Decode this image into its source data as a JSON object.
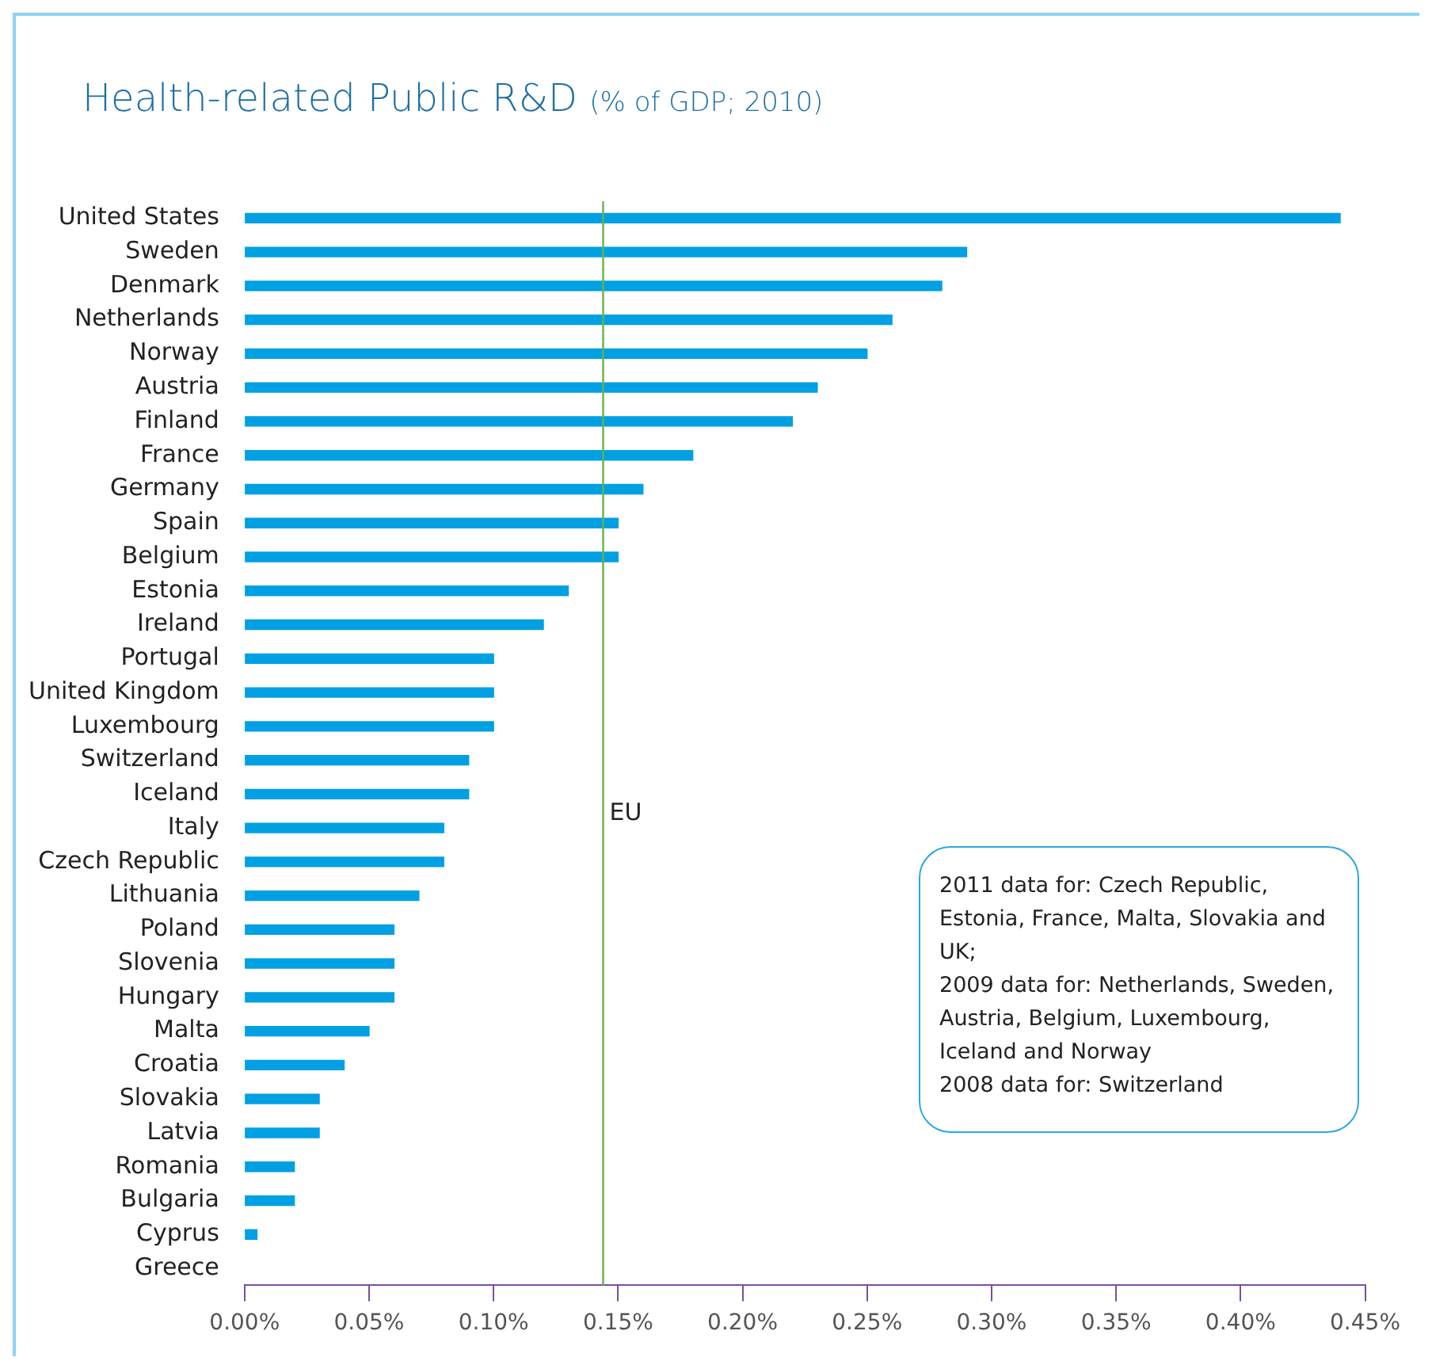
{
  "chart_data": {
    "type": "bar",
    "orientation": "horizontal",
    "title": "Health-related Public R&D",
    "subtitle": "(% of GDP; 2010)",
    "categories": [
      "United States",
      "Sweden",
      "Denmark",
      "Netherlands",
      "Norway",
      "Austria",
      "Finland",
      "France",
      "Germany",
      "Spain",
      "Belgium",
      "Estonia",
      "Ireland",
      "Portugal",
      "United Kingdom",
      "Luxembourg",
      "Switzerland",
      "Iceland",
      "Italy",
      "Czech Republic",
      "Lithuania",
      "Poland",
      "Slovenia",
      "Hungary",
      "Malta",
      "Croatia",
      "Slovakia",
      "Latvia",
      "Romania",
      "Bulgaria",
      "Cyprus",
      "Greece"
    ],
    "values": [
      0.44,
      0.29,
      0.28,
      0.26,
      0.25,
      0.23,
      0.22,
      0.18,
      0.16,
      0.15,
      0.15,
      0.13,
      0.12,
      0.1,
      0.1,
      0.1,
      0.09,
      0.09,
      0.08,
      0.08,
      0.07,
      0.06,
      0.06,
      0.06,
      0.05,
      0.04,
      0.03,
      0.03,
      0.02,
      0.02,
      0.005,
      null
    ],
    "color": "#00a0e3",
    "xlim": [
      0,
      0.45
    ],
    "xticks": [
      {
        "value": 0,
        "label": "0.00%"
      },
      {
        "value": 0.05,
        "label": "0.05%"
      },
      {
        "value": 0.1,
        "label": "0.10%"
      },
      {
        "value": 0.15,
        "label": "0.15%"
      },
      {
        "value": 0.2,
        "label": "0.20%"
      },
      {
        "value": 0.25,
        "label": "0.25%"
      },
      {
        "value": 0.3,
        "label": "0.30%"
      },
      {
        "value": 0.35,
        "label": "0.35%"
      },
      {
        "value": 0.4,
        "label": "0.40%"
      },
      {
        "value": 0.45,
        "label": "0.45%"
      }
    ],
    "ref_lines": [
      {
        "axis": "x",
        "value": 0.144,
        "label": "EU",
        "color": "#6ab04c"
      }
    ],
    "annotations": [
      "2011 data for: Czech Republic, Estonia, France, Malta, Slovakia and UK;",
      "2009 data for: Netherlands, Sweden, Austria, Belgium, Luxembourg, Iceland and Norway",
      "2008 data for: Switzerland"
    ],
    "grid": false,
    "legend": false
  }
}
